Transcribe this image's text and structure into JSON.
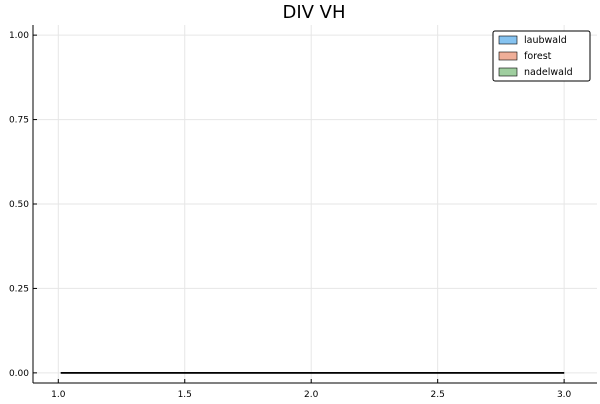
{
  "chart_data": {
    "type": "area",
    "title": "DIV VH",
    "xlabel": "",
    "ylabel": "",
    "xlim": [
      0.9,
      3.13
    ],
    "ylim": [
      -0.03,
      1.03
    ],
    "x_ticks": [
      {
        "value": 1.0,
        "label": "1.0"
      },
      {
        "value": 1.5,
        "label": "1.5"
      },
      {
        "value": 2.0,
        "label": "2.0"
      },
      {
        "value": 2.5,
        "label": "2.5"
      },
      {
        "value": 3.0,
        "label": "3.0"
      }
    ],
    "y_ticks": [
      {
        "value": 0.0,
        "label": "0.00"
      },
      {
        "value": 0.25,
        "label": "0.25"
      },
      {
        "value": 0.5,
        "label": "0.50"
      },
      {
        "value": 0.75,
        "label": "0.75"
      },
      {
        "value": 1.0,
        "label": "1.00"
      }
    ],
    "grid": true,
    "legend_position": "top-right",
    "series": [
      {
        "name": "laubwald",
        "color": "#86c3f0",
        "x": [
          1.01,
          3.0
        ],
        "y": [
          0,
          0
        ]
      },
      {
        "name": "forest",
        "color": "#efae98",
        "x": [
          1.01,
          3.0
        ],
        "y": [
          0,
          0
        ]
      },
      {
        "name": "nadelwald",
        "color": "#9fce9f",
        "x": [
          1.01,
          3.0
        ],
        "y": [
          0,
          0
        ]
      }
    ]
  }
}
